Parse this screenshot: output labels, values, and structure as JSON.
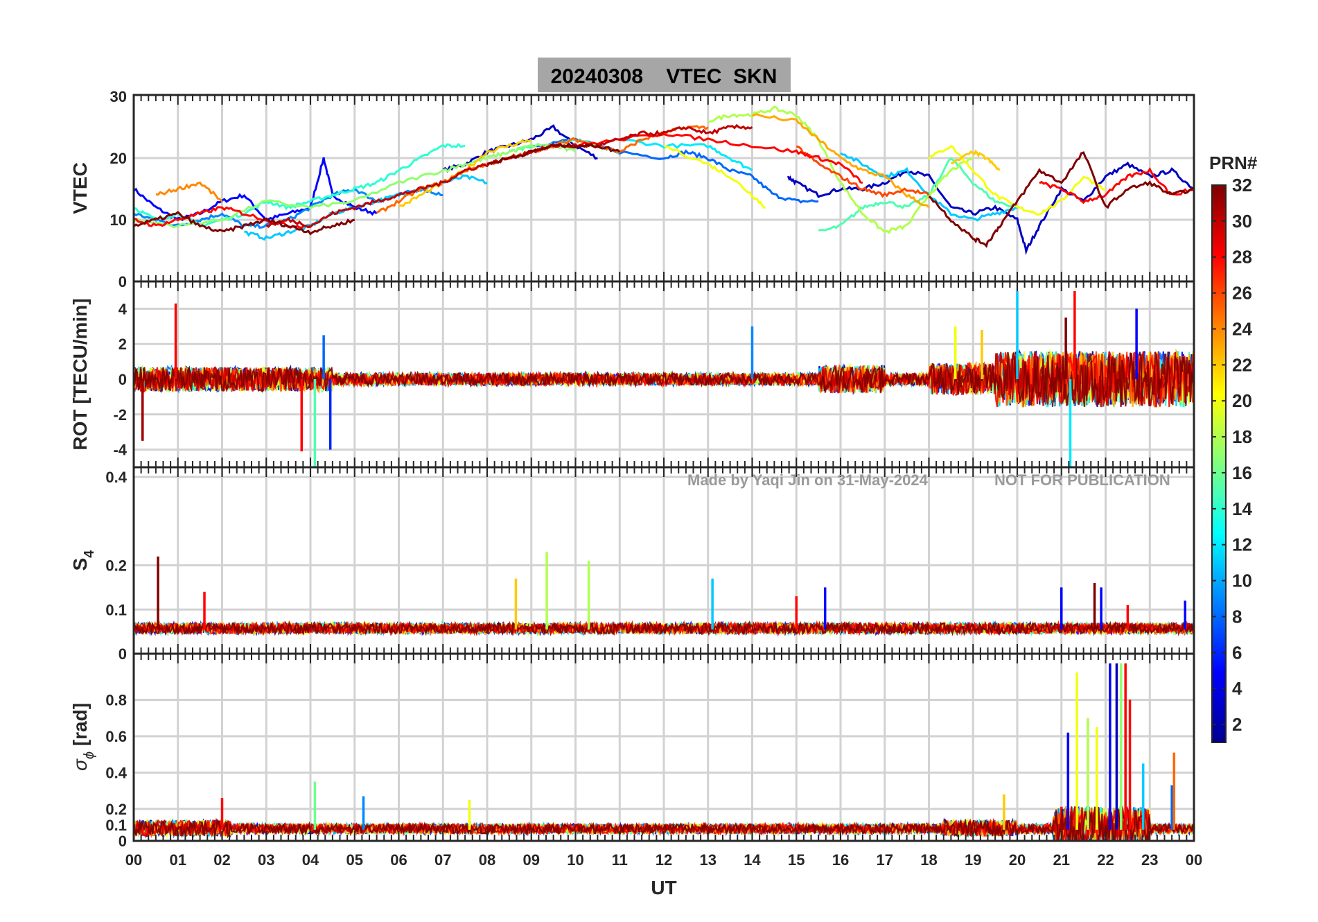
{
  "chart_data": {
    "type": "line",
    "title": "20240308    VTEC  SKN",
    "watermark_left": "Made by Yaqi Jin on 31-May-2024",
    "watermark_right": "NOT FOR PUBLICATION",
    "xlabel": "UT",
    "xlim": [
      0,
      24
    ],
    "xticks": [
      "00",
      "01",
      "02",
      "03",
      "04",
      "05",
      "06",
      "07",
      "08",
      "09",
      "10",
      "11",
      "12",
      "13",
      "14",
      "15",
      "16",
      "17",
      "18",
      "19",
      "20",
      "21",
      "22",
      "23",
      "00"
    ],
    "grid": true,
    "colorbar": {
      "label": "PRN#",
      "range": [
        1,
        32
      ],
      "ticks": [
        "2",
        "4",
        "6",
        "8",
        "10",
        "12",
        "14",
        "16",
        "18",
        "20",
        "22",
        "24",
        "26",
        "28",
        "30",
        "32"
      ],
      "colormap": "jet"
    },
    "panels": [
      {
        "name": "vtec",
        "ylabel": "VTEC",
        "ylim": [
          0,
          30
        ],
        "yticks": [
          "0",
          "10",
          "20",
          "30"
        ],
        "series": [
          {
            "prn": 5,
            "x": [
              0,
              0.5,
              1,
              1.5,
              2,
              2.5,
              3,
              3.5,
              4,
              4.3,
              4.5,
              5,
              5.5
            ],
            "y": [
              15,
              12,
              10,
              11,
              13,
              14,
              10,
              11,
              12,
              20,
              14,
              12,
              11
            ]
          },
          {
            "prn": 3,
            "x": [
              7,
              7.5,
              8,
              8.5,
              9,
              9.5,
              10,
              10.5
            ],
            "y": [
              18,
              19,
              21,
              22,
              23,
              25,
              22,
              20
            ]
          },
          {
            "prn": 3,
            "x": [
              14.8,
              15,
              15.5,
              16,
              16.5,
              17,
              17.5,
              18,
              18.5,
              19,
              19.5,
              20,
              20.2,
              20.5,
              21,
              21.5,
              22,
              22.5,
              23,
              23.5,
              24
            ],
            "y": [
              17,
              16,
              14,
              15,
              15,
              16,
              18,
              17,
              12,
              11,
              12,
              10,
              5,
              9,
              15,
              13,
              17,
              19,
              17,
              18,
              15
            ]
          },
          {
            "prn": 8,
            "x": [
              9,
              10,
              11,
              12,
              12.5,
              13,
              13.5,
              14,
              14.5,
              15,
              15.5
            ],
            "y": [
              22,
              23,
              21,
              20,
              21,
              20,
              18,
              17,
              14,
              13,
              13
            ]
          },
          {
            "prn": 9,
            "x": [
              0,
              0.5,
              1,
              1.5,
              2,
              2.5,
              3,
              3.5,
              4,
              4.5,
              5,
              5.5,
              6,
              6.5,
              7
            ],
            "y": [
              11,
              10,
              9,
              10,
              11,
              9,
              9,
              10,
              12,
              14,
              15,
              13,
              14,
              15,
              14
            ]
          },
          {
            "prn": 11,
            "x": [
              2.5,
              3,
              3.5,
              4,
              4.5,
              5,
              5.5,
              6,
              6.5,
              7,
              7.5,
              8
            ],
            "y": [
              8,
              7,
              8,
              9,
              11,
              12,
              13,
              14,
              15,
              16,
              17,
              16
            ]
          },
          {
            "prn": 12,
            "x": [
              11,
              12,
              13,
              13.5,
              14
            ],
            "y": [
              23,
              22,
              22,
              20,
              18
            ]
          },
          {
            "prn": 11,
            "x": [
              16,
              16.5,
              17,
              17.5,
              18,
              18.5,
              19,
              19.5,
              20
            ],
            "y": [
              21,
              19,
              17,
              18,
              14,
              11,
              10,
              11,
              12
            ]
          },
          {
            "prn": 14,
            "x": [
              0,
              0.5,
              1,
              1.5,
              2,
              2.5,
              3,
              3.5,
              4,
              4.5,
              5,
              5.5,
              6,
              6.5,
              7,
              7.5
            ],
            "y": [
              12,
              10,
              11,
              9,
              10,
              11,
              13,
              12,
              13,
              14,
              15,
              16,
              18,
              20,
              22,
              22
            ]
          },
          {
            "prn": 15,
            "x": [
              8.5,
              9,
              9.5,
              10,
              10.5,
              11
            ],
            "y": [
              21,
              22,
              22,
              23,
              22,
              21
            ]
          },
          {
            "prn": 15,
            "x": [
              15.5,
              16,
              16.5,
              17,
              17.5,
              18,
              18.5,
              19,
              19.5,
              20
            ],
            "y": [
              8,
              9,
              12,
              13,
              12,
              14,
              20,
              16,
              13,
              12
            ]
          },
          {
            "prn": 17,
            "x": [
              0,
              1,
              2,
              3,
              4,
              5,
              6,
              7,
              7.5,
              8,
              8.5,
              9,
              9.5,
              10
            ],
            "y": [
              10,
              9,
              10,
              13,
              12,
              13,
              16,
              18,
              19,
              20,
              21,
              22,
              22,
              21
            ]
          },
          {
            "prn": 18,
            "x": [
              13,
              13.5,
              14,
              14.5,
              15,
              15.5,
              16,
              16.5,
              17,
              17.5,
              18,
              18.5,
              19
            ],
            "y": [
              26,
              27,
              27,
              28,
              27,
              23,
              16,
              11,
              8,
              9,
              14,
              18,
              20
            ]
          },
          {
            "prn": 20,
            "x": [
              12,
              13,
              13.5,
              14,
              14.3
            ],
            "y": [
              22,
              19,
              17,
              14,
              12
            ]
          },
          {
            "prn": 20,
            "x": [
              18,
              18.5,
              19,
              19.5,
              20,
              20.5,
              21,
              21.5,
              22
            ],
            "y": [
              20,
              22,
              18,
              14,
              12,
              11,
              13,
              17,
              15
            ]
          },
          {
            "prn": 22,
            "x": [
              6,
              6.5,
              7,
              7.5,
              8,
              8.5,
              9
            ],
            "y": [
              12,
              14,
              16,
              18,
              21,
              22,
              23
            ]
          },
          {
            "prn": 23,
            "x": [
              14,
              15,
              15.5,
              16,
              16.5,
              17,
              17.5,
              18
            ],
            "y": [
              27,
              26,
              23,
              20,
              18,
              17,
              14,
              12
            ]
          },
          {
            "prn": 22,
            "x": [
              18.5,
              19,
              19.3,
              19.6
            ],
            "y": [
              19,
              21,
              20,
              18
            ]
          },
          {
            "prn": 24,
            "x": [
              0.5,
              1,
              1.5,
              2
            ],
            "y": [
              14,
              15,
              16,
              13
            ]
          },
          {
            "prn": 25,
            "x": [
              5.5,
              6,
              6.5,
              7,
              7.5,
              8,
              8.5,
              9,
              9.5,
              10,
              10.5,
              11,
              11.5,
              12,
              12.5,
              13
            ],
            "y": [
              11,
              13,
              15,
              16,
              18,
              19,
              20,
              21,
              22,
              23,
              22,
              21,
              23,
              24,
              25,
              25
            ]
          },
          {
            "prn": 26,
            "x": [
              15,
              15.5,
              16,
              16.5,
              17,
              17.5,
              18
            ],
            "y": [
              22,
              19,
              17,
              15,
              14,
              15,
              14
            ]
          },
          {
            "prn": 28,
            "x": [
              0,
              0.5,
              1,
              1.5,
              2,
              2.5,
              3,
              3.5,
              4
            ],
            "y": [
              10,
              9,
              10,
              11,
              12,
              11,
              10,
              9,
              9
            ]
          },
          {
            "prn": 28,
            "x": [
              10,
              11,
              12,
              13,
              14,
              15,
              15.5,
              16,
              16.5
            ],
            "y": [
              22,
              23,
              24,
              23,
              22,
              21,
              20,
              19,
              16
            ]
          },
          {
            "prn": 28,
            "x": [
              20.5,
              21,
              21.5,
              22,
              22.5,
              23,
              23.5,
              24
            ],
            "y": [
              16,
              15,
              13,
              14,
              17,
              18,
              14,
              15
            ]
          },
          {
            "prn": 30,
            "x": [
              3,
              3.5,
              4,
              4.5,
              5,
              5.5,
              6,
              6.5,
              7,
              7.5,
              8,
              8.5,
              9,
              9.5,
              10,
              10.5,
              11,
              11.5,
              12,
              12.5,
              13,
              13.5,
              14
            ],
            "y": [
              9,
              10,
              9,
              11,
              12,
              13,
              14,
              15,
              16,
              18,
              19,
              20,
              21,
              22,
              22,
              22,
              23,
              24,
              24,
              25,
              24,
              25,
              25
            ]
          },
          {
            "prn": 32,
            "x": [
              0,
              0.5,
              1,
              1.5,
              2,
              2.5,
              3,
              3.5,
              4,
              4.5,
              5
            ],
            "y": [
              9,
              10,
              11,
              9,
              8,
              9,
              10,
              9,
              8,
              9,
              10
            ]
          },
          {
            "prn": 32,
            "x": [
              8,
              8.5,
              9,
              9.5,
              10,
              10.5,
              11
            ],
            "y": [
              19,
              20,
              21,
              22,
              22,
              22,
              21
            ]
          },
          {
            "prn": 32,
            "x": [
              18,
              18.5,
              19,
              19.3,
              19.6,
              20,
              20.5,
              21,
              21.5,
              22,
              22.5,
              23,
              23.5,
              24
            ],
            "y": [
              14,
              10,
              7,
              6,
              9,
              13,
              18,
              16,
              21,
              12,
              15,
              16,
              14,
              15
            ]
          }
        ]
      },
      {
        "name": "rot",
        "ylabel": "ROT [TECU/min]",
        "ylim": [
          -5,
          5
        ],
        "yticks": [
          "-4",
          "-2",
          "0",
          "2",
          "4"
        ],
        "spikes": [
          {
            "prn": 28,
            "x": 0.95,
            "y": 4.3
          },
          {
            "prn": 31,
            "x": 0.2,
            "y": -3.5
          },
          {
            "prn": 28,
            "x": 3.8,
            "y": -4.1
          },
          {
            "prn": 15,
            "x": 4.1,
            "y": -5.0
          },
          {
            "prn": 8,
            "x": 4.3,
            "y": 2.5
          },
          {
            "prn": 6,
            "x": 4.45,
            "y": -4.0
          },
          {
            "prn": 9,
            "x": 14,
            "y": 3.0
          },
          {
            "prn": 11,
            "x": 20,
            "y": 5.0
          },
          {
            "prn": 28,
            "x": 21.3,
            "y": 5.0
          },
          {
            "prn": 12,
            "x": 21.2,
            "y": -5.0
          },
          {
            "prn": 32,
            "x": 21.1,
            "y": 3.5
          },
          {
            "prn": 5,
            "x": 22.7,
            "y": 4.0
          },
          {
            "prn": 20,
            "x": 18.6,
            "y": 3.0
          },
          {
            "prn": 22,
            "x": 19.2,
            "y": 2.8
          }
        ]
      },
      {
        "name": "s4",
        "ylabel": "S4",
        "ylim": [
          0,
          0.4
        ],
        "yticks": [
          "0",
          "0.1",
          "0.2",
          "0.4"
        ],
        "spikes": [
          {
            "prn": 32,
            "x": 0.55,
            "y": 0.22
          },
          {
            "prn": 28,
            "x": 1.6,
            "y": 0.14
          },
          {
            "prn": 22,
            "x": 8.65,
            "y": 0.17
          },
          {
            "prn": 18,
            "x": 9.35,
            "y": 0.23
          },
          {
            "prn": 18,
            "x": 10.3,
            "y": 0.21
          },
          {
            "prn": 11,
            "x": 13.1,
            "y": 0.17
          },
          {
            "prn": 28,
            "x": 15,
            "y": 0.13
          },
          {
            "prn": 5,
            "x": 15.65,
            "y": 0.15
          },
          {
            "prn": 5,
            "x": 21,
            "y": 0.15
          },
          {
            "prn": 32,
            "x": 21.75,
            "y": 0.16
          },
          {
            "prn": 5,
            "x": 21.9,
            "y": 0.15
          },
          {
            "prn": 28,
            "x": 22.5,
            "y": 0.11
          },
          {
            "prn": 5,
            "x": 23.8,
            "y": 0.12
          }
        ]
      },
      {
        "name": "sigma_phi",
        "ylabel": "σϕ [rad]",
        "ylim": [
          0,
          1
        ],
        "yticks": [
          "0",
          "0.1",
          "0.2",
          "0.4",
          "0.6",
          "0.8"
        ],
        "spikes": [
          {
            "prn": 16,
            "x": 4.1,
            "y": 0.35
          },
          {
            "prn": 9,
            "x": 5.2,
            "y": 0.27
          },
          {
            "prn": 28,
            "x": 2.0,
            "y": 0.26
          },
          {
            "prn": 20,
            "x": 7.6,
            "y": 0.25
          },
          {
            "prn": 22,
            "x": 19.7,
            "y": 0.28
          },
          {
            "prn": 5,
            "x": 21.15,
            "y": 0.62
          },
          {
            "prn": 20,
            "x": 21.35,
            "y": 0.95
          },
          {
            "prn": 18,
            "x": 21.6,
            "y": 0.7
          },
          {
            "prn": 20,
            "x": 21.8,
            "y": 0.65
          },
          {
            "prn": 5,
            "x": 22.1,
            "y": 1.0
          },
          {
            "prn": 3,
            "x": 22.25,
            "y": 1.0
          },
          {
            "prn": 17,
            "x": 22.35,
            "y": 1.0
          },
          {
            "prn": 28,
            "x": 22.45,
            "y": 1.0
          },
          {
            "prn": 28,
            "x": 22.55,
            "y": 0.8
          },
          {
            "prn": 11,
            "x": 22.85,
            "y": 0.45
          },
          {
            "prn": 8,
            "x": 23.5,
            "y": 0.33
          },
          {
            "prn": 25,
            "x": 23.55,
            "y": 0.51
          }
        ]
      }
    ]
  }
}
